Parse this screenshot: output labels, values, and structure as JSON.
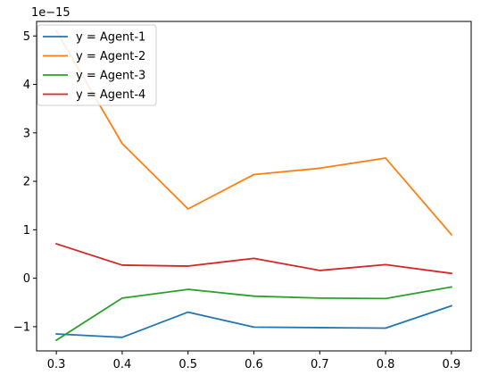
{
  "chart_data": {
    "type": "line",
    "title": "",
    "xlabel": "",
    "ylabel": "",
    "y_offset_text": "1e−15",
    "x": [
      0.3,
      0.4,
      0.5,
      0.6,
      0.7,
      0.8,
      0.9
    ],
    "x_ticks": [
      "0.3",
      "0.4",
      "0.5",
      "0.6",
      "0.7",
      "0.8",
      "0.9"
    ],
    "y_ticks": [
      "−1",
      "0",
      "1",
      "2",
      "3",
      "4",
      "5"
    ],
    "xlim": [
      0.27,
      0.93
    ],
    "ylim": [
      -1.5,
      5.3
    ],
    "grid": false,
    "legend_position": "upper-left",
    "series": [
      {
        "name": "y = Agent-1",
        "color": "#1f77b4",
        "values": [
          -1.15,
          -1.22,
          -0.7,
          -1.01,
          -1.02,
          -1.03,
          -0.57
        ]
      },
      {
        "name": "y = Agent-2",
        "color": "#ff7f0e",
        "values": [
          5.1,
          2.78,
          1.43,
          2.14,
          2.27,
          2.48,
          0.9
        ]
      },
      {
        "name": "y = Agent-3",
        "color": "#2ca02c",
        "values": [
          -1.28,
          -0.41,
          -0.23,
          -0.37,
          -0.41,
          -0.42,
          -0.18
        ]
      },
      {
        "name": "y = Agent-4",
        "color": "#d62728",
        "values": [
          0.71,
          0.27,
          0.25,
          0.41,
          0.16,
          0.28,
          0.1
        ]
      }
    ]
  }
}
